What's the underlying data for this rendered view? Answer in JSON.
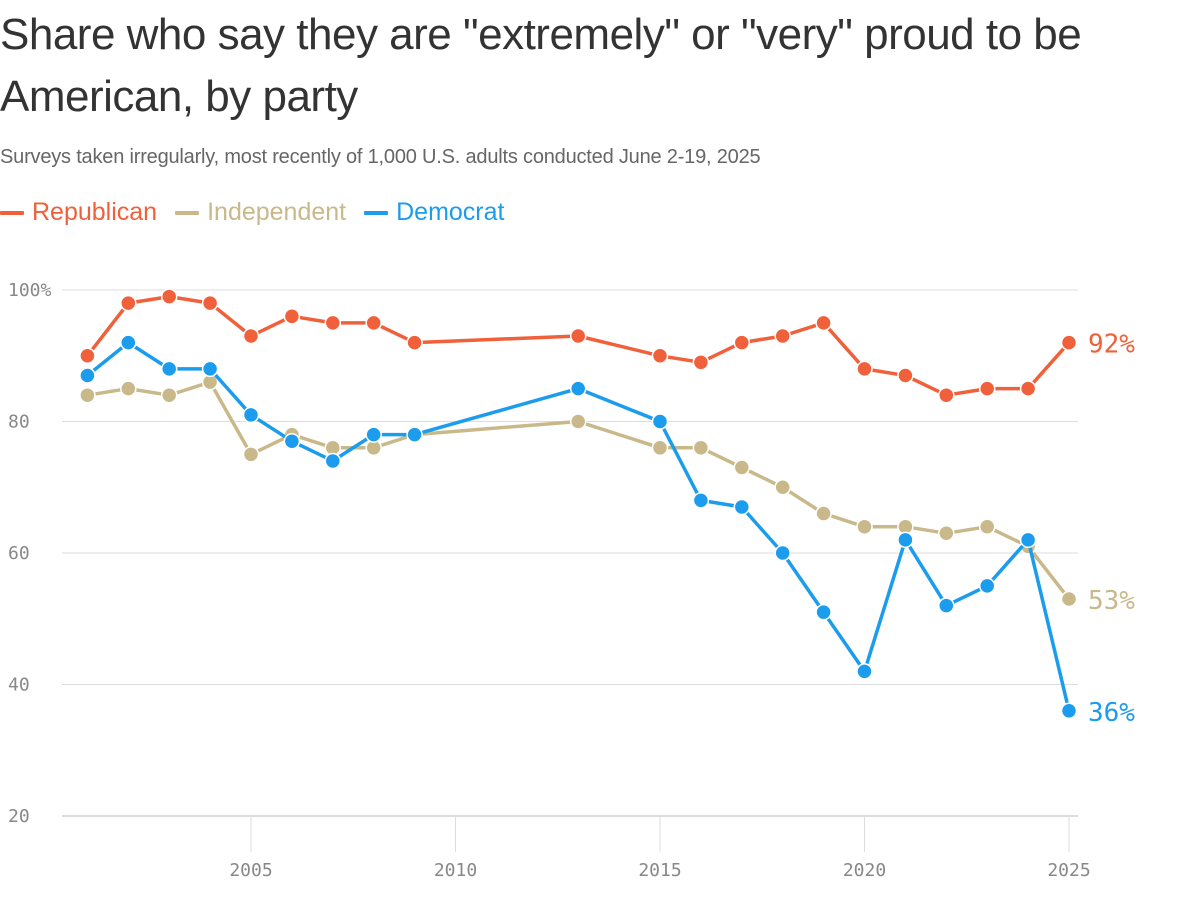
{
  "title": "Share who say they are \"extremely\" or \"very\" proud to be American, by party",
  "subtitle": "Surveys taken irregularly, most recently of 1,000 U.S. adults conducted June 2-19, 2025",
  "chart_data": {
    "type": "line",
    "title": "Share who say they are \"extremely\" or \"very\" proud to be American, by party",
    "subtitle": "Surveys taken irregularly, most recently of 1,000 U.S. adults conducted June 2-19, 2025",
    "xlabel": "",
    "ylabel": "",
    "xlim": [
      2000.5,
      2025.2
    ],
    "ylim": [
      20,
      100
    ],
    "grid": true,
    "legend": "top-left",
    "x_ticks": [
      2005,
      2010,
      2015,
      2020,
      2025
    ],
    "x_tick_labels": [
      "2005",
      "2010",
      "2015",
      "2020",
      "2025"
    ],
    "y_ticks": [
      20,
      40,
      60,
      80,
      100
    ],
    "y_tick_labels": [
      "20",
      "40",
      "60",
      "80",
      "100%"
    ],
    "series": [
      {
        "name": "Republican",
        "color": "#f0603a",
        "end_label": "92%",
        "points": [
          [
            2001,
            90
          ],
          [
            2002,
            98
          ],
          [
            2003,
            99
          ],
          [
            2004,
            98
          ],
          [
            2005,
            93
          ],
          [
            2006,
            96
          ],
          [
            2007,
            95
          ],
          [
            2008,
            95
          ],
          [
            2009,
            92
          ],
          [
            2013,
            93
          ],
          [
            2015,
            90
          ],
          [
            2016,
            89
          ],
          [
            2017,
            92
          ],
          [
            2018,
            93
          ],
          [
            2019,
            95
          ],
          [
            2020,
            88
          ],
          [
            2021,
            87
          ],
          [
            2022,
            84
          ],
          [
            2023,
            85
          ],
          [
            2024,
            85
          ],
          [
            2025,
            92
          ]
        ]
      },
      {
        "name": "Independent",
        "color": "#c9b98a",
        "end_label": "53%",
        "points": [
          [
            2001,
            84
          ],
          [
            2002,
            85
          ],
          [
            2003,
            84
          ],
          [
            2004,
            86
          ],
          [
            2005,
            75
          ],
          [
            2006,
            78
          ],
          [
            2007,
            76
          ],
          [
            2008,
            76
          ],
          [
            2009,
            78
          ],
          [
            2013,
            80
          ],
          [
            2015,
            76
          ],
          [
            2016,
            76
          ],
          [
            2017,
            73
          ],
          [
            2018,
            70
          ],
          [
            2019,
            66
          ],
          [
            2020,
            64
          ],
          [
            2021,
            64
          ],
          [
            2022,
            63
          ],
          [
            2023,
            64
          ],
          [
            2024,
            61
          ],
          [
            2025,
            53
          ]
        ]
      },
      {
        "name": "Democrat",
        "color": "#1c9cec",
        "end_label": "36%",
        "points": [
          [
            2001,
            87
          ],
          [
            2002,
            92
          ],
          [
            2003,
            88
          ],
          [
            2004,
            88
          ],
          [
            2005,
            81
          ],
          [
            2006,
            77
          ],
          [
            2007,
            74
          ],
          [
            2008,
            78
          ],
          [
            2009,
            78
          ],
          [
            2013,
            85
          ],
          [
            2015,
            80
          ],
          [
            2016,
            68
          ],
          [
            2017,
            67
          ],
          [
            2018,
            60
          ],
          [
            2019,
            51
          ],
          [
            2020,
            42
          ],
          [
            2021,
            62
          ],
          [
            2022,
            52
          ],
          [
            2023,
            55
          ],
          [
            2024,
            62
          ],
          [
            2025,
            36
          ]
        ]
      }
    ]
  }
}
